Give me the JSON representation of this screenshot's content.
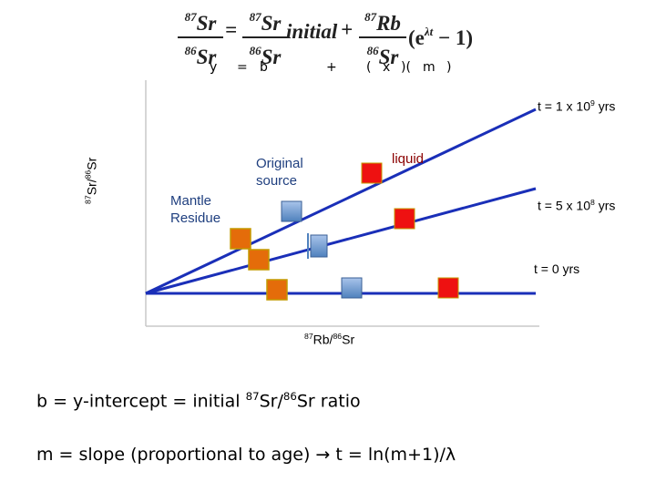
{
  "equation": {
    "lhs_num": "Sr",
    "lhs_num_sup": "87",
    "lhs_den": "Sr",
    "lhs_den_sup": "86",
    "equals": "=",
    "init_num": "Sr",
    "init_num_sup": "87",
    "init_den": "Sr",
    "init_den_sup": "86",
    "initial_word": "initial",
    "plus": "+",
    "rb_num": "Rb",
    "rb_num_sup": "87",
    "rb_den": "Sr",
    "rb_den_sup": "86",
    "exp_term": "(e",
    "exp_sup": "λt",
    "exp_tail": " − 1)"
  },
  "equation_labels": {
    "y": "y",
    "eq": "=",
    "b": "b",
    "plus": "+",
    "paren_open": "(",
    "x": "x",
    "paren_mid": ")(",
    "m": "m",
    "paren_close": ")"
  },
  "diagram": {
    "y_axis_label_sup": "87",
    "y_axis_label_mid": "Sr/",
    "y_axis_label_sup2": "86",
    "y_axis_label_end": "Sr",
    "x_axis_label_sup": "87",
    "x_axis_label_mid": "Rb/",
    "x_axis_label_sup2": "86",
    "x_axis_label_end": "Sr",
    "isochron_1": {
      "base": "t = 1 x 10",
      "exp": "9",
      "unit": " yrs"
    },
    "isochron_2": {
      "base": "t = 5 x 10",
      "exp": "8",
      "unit": " yrs"
    },
    "isochron_3": {
      "base": "t = 0 yrs"
    },
    "mantle_label_1": "Mantle",
    "mantle_label_2": "Residue",
    "source_label_1": "Original",
    "source_label_2": "source",
    "liquid_label": "liquid",
    "colors": {
      "line": "#1a2fb8",
      "mantle": "#e46c0a",
      "source": "#4f81bd",
      "liquid": "#ee1111"
    }
  },
  "notes": {
    "b_text": "b = y-intercept = initial ",
    "b_sup1": "87",
    "b_mid": "Sr/",
    "b_sup2": "86",
    "b_end": "Sr ratio",
    "m_text": "m = slope (proportional to age) ",
    "m_arrow": "→",
    "m_formula": " t = ln(m+1)/λ"
  }
}
